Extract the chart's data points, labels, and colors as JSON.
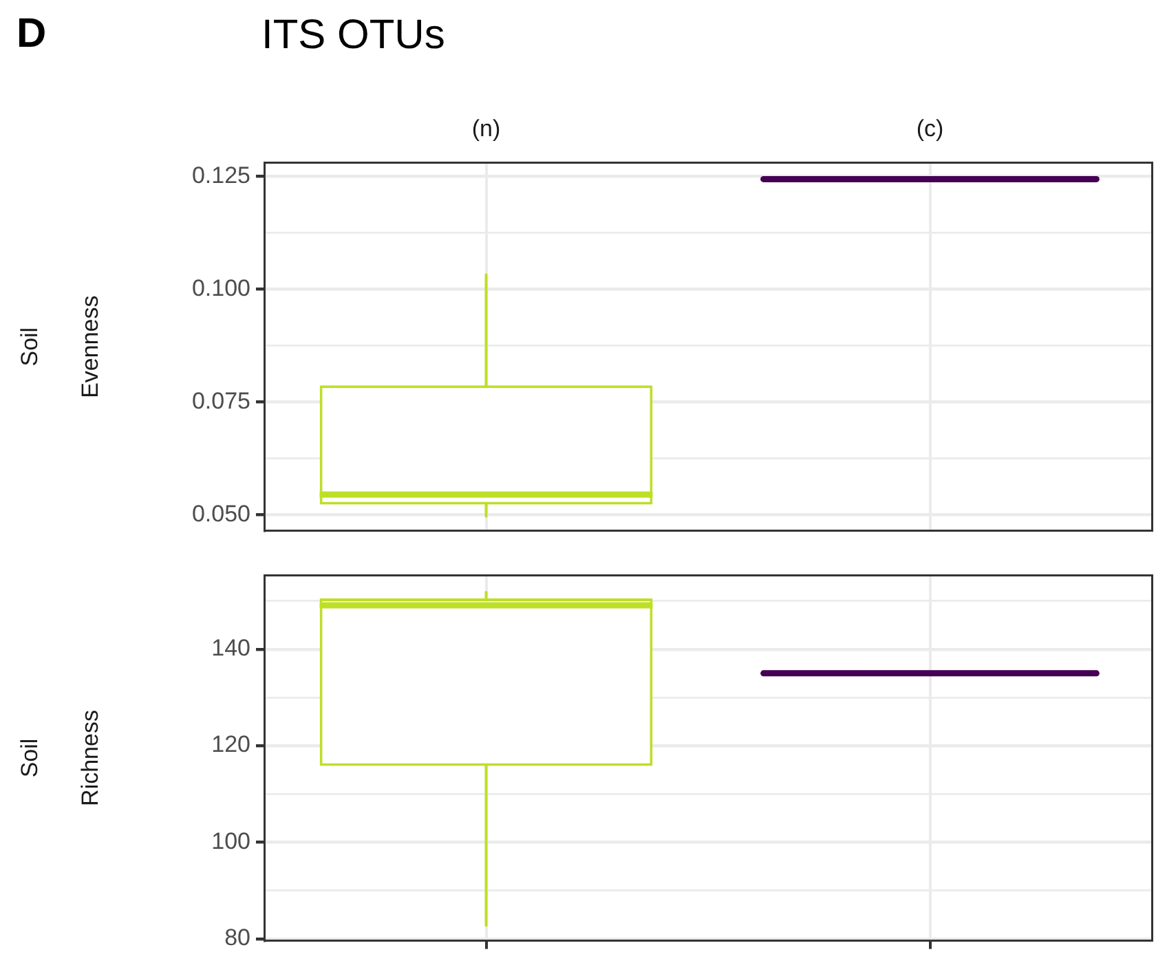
{
  "chart_data": [
    {
      "type": "box",
      "title": "ITS OTUs",
      "annotations": [
        "D"
      ],
      "ylabel": "Soil\nEvenness",
      "categories": [
        "(n)",
        "(c)"
      ],
      "ylim": [
        0.0465,
        0.128
      ],
      "yticks": [
        {
          "value": 0.05,
          "label": "0.050"
        },
        {
          "value": 0.0625,
          "label": null
        },
        0.075,
        {
          "value": 0.0875,
          "label": null
        },
        {
          "value": 0.1,
          "label": "0.100"
        },
        {
          "value": 0.1125,
          "label": null
        },
        0.125
      ],
      "grid": true,
      "series": [
        {
          "colors": [
            "#bddf26",
            "#440154"
          ],
          "boxes": [
            {
              "low": 0.0497,
              "q1": 0.0523,
              "median": 0.0545,
              "q3": 0.0787,
              "high": 0.1032
            },
            {
              "low": 0.1244,
              "q1": 0.1244,
              "median": 0.1244,
              "q3": 0.1244,
              "high": 0.1244
            }
          ]
        }
      ]
    },
    {
      "type": "box",
      "ylabel": "Soil\nRichness",
      "categories": [
        null,
        null
      ],
      "ylim": [
        79.6,
        155.3
      ],
      "yticks": [
        80,
        {
          "value": 90,
          "label": null
        },
        100,
        {
          "value": 110,
          "label": null
        },
        120,
        {
          "value": 130,
          "label": null
        },
        140,
        {
          "value": 150,
          "label": null
        }
      ],
      "grid": true,
      "tick_labels": "y",
      "series": [
        {
          "colors": [
            "#bddf26",
            "#440154"
          ],
          "boxes": [
            {
              "low": 82.8,
              "q1": 115.8,
              "median": 149.1,
              "q3": 150.5,
              "high": 151.8
            },
            {
              "low": 135,
              "q1": 135,
              "median": 135,
              "q3": 135,
              "high": 135
            }
          ]
        }
      ]
    }
  ]
}
